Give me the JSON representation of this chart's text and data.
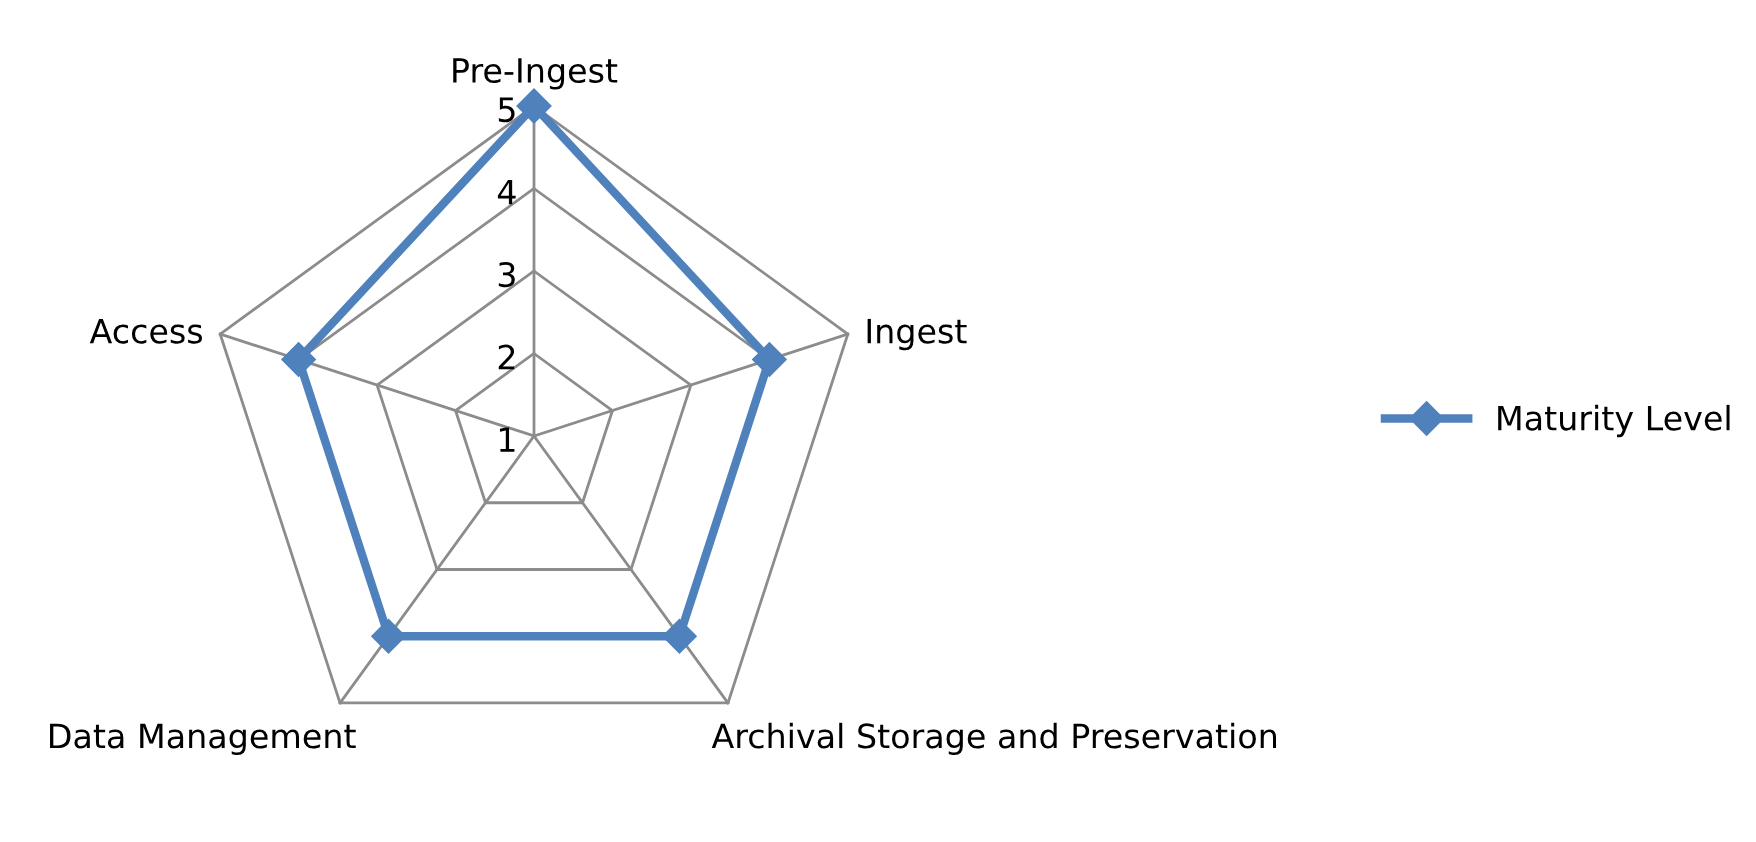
{
  "chart_data": {
    "type": "radar",
    "categories": [
      "Pre-Ingest",
      "Ingest",
      "Archival Storage and Preservation",
      "Data Management",
      "Access"
    ],
    "series": [
      {
        "name": "Maturity Level",
        "color": "#4f81bd",
        "values": [
          5,
          4,
          4,
          4,
          4
        ]
      }
    ],
    "ylim": [
      1,
      5
    ],
    "yticks": [
      1,
      2,
      3,
      4,
      5
    ],
    "grid": true,
    "legend": "right",
    "marker": "diamond",
    "line_style": "solid"
  }
}
